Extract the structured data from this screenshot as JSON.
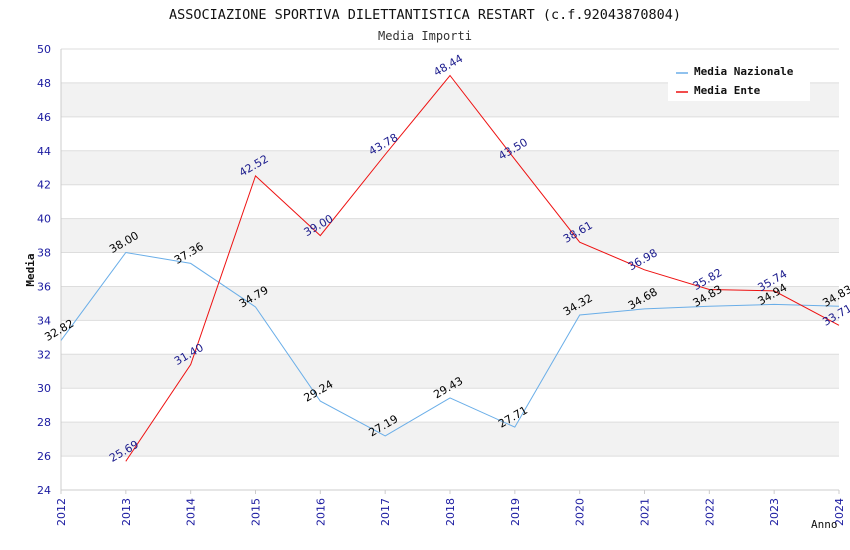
{
  "chart_data": {
    "type": "line",
    "title": "ASSOCIAZIONE SPORTIVA DILETTANTISTICA RESTART (c.f.92043870804)",
    "subtitle": "Media Importi",
    "xlabel": "Anno",
    "ylabel": "Media",
    "x": [
      2012,
      2013,
      2014,
      2015,
      2016,
      2017,
      2018,
      2019,
      2020,
      2021,
      2022,
      2023,
      2024
    ],
    "ylim": [
      24,
      50
    ],
    "yticks": [
      24,
      26,
      28,
      30,
      32,
      34,
      36,
      38,
      40,
      42,
      44,
      46,
      48,
      50
    ],
    "grid": true,
    "legend_position": "top-right",
    "series": [
      {
        "name": "Media Nazionale",
        "color": "#6aaee8",
        "label_color": "#000000",
        "x": [
          2012,
          2013,
          2014,
          2015,
          2016,
          2017,
          2018,
          2019,
          2020,
          2021,
          2022,
          2023,
          2024
        ],
        "values": [
          32.82,
          38.0,
          37.36,
          34.79,
          29.24,
          27.19,
          29.43,
          27.71,
          34.32,
          34.68,
          34.83,
          34.94,
          34.83
        ],
        "labels": [
          "32.82",
          "38.00",
          "37.36",
          "34.79",
          "29.24",
          "27.19",
          "29.43",
          "27.71",
          "34.32",
          "34.68",
          "34.83",
          "34.94",
          "34.83"
        ]
      },
      {
        "name": "Media Ente",
        "color": "#ee1111",
        "label_color": "#1a1a8c",
        "x": [
          2013,
          2014,
          2015,
          2016,
          2017,
          2018,
          2019,
          2020,
          2021,
          2022,
          2023,
          2024
        ],
        "values": [
          25.69,
          31.4,
          42.52,
          39.0,
          43.78,
          48.44,
          43.5,
          38.61,
          36.98,
          35.82,
          35.74,
          33.71
        ],
        "labels": [
          "25.69",
          "31.40",
          "42.52",
          "39.00",
          "43.78",
          "48.44",
          "43.50",
          "38.61",
          "36.98",
          "35.82",
          "35.74",
          "33.71"
        ]
      }
    ]
  },
  "colors": {
    "band": "#f2f2f2",
    "gridline": "#dddddd",
    "axis": "#cccccc",
    "tick_label": "#1a1aa0",
    "title": "#111111",
    "subtitle": "#333333"
  }
}
